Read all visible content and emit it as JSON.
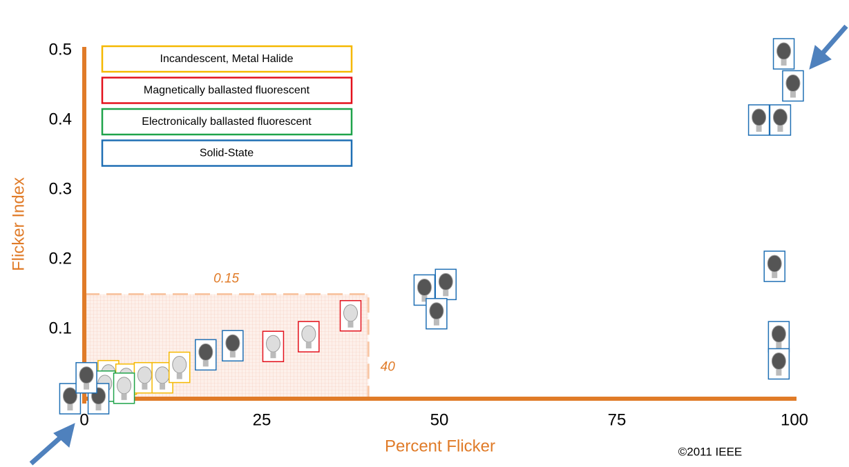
{
  "chart_data": {
    "type": "scatter",
    "x_label": "Percent Flicker",
    "y_label": "Flicker Index",
    "xlim": [
      0,
      100
    ],
    "ylim": [
      0,
      0.5
    ],
    "xticks": [
      0,
      25,
      50,
      75,
      100
    ],
    "yticks": [
      0.1,
      0.2,
      0.3,
      0.4,
      0.5
    ],
    "axis_color": "#e07b28",
    "threshold": {
      "x": 40,
      "y": 0.15
    },
    "copyright": "©2011 IEEE",
    "series": [
      {
        "name": "Incandescent, Metal Halide",
        "color": "#f5b800",
        "x": [
          3.4,
          5.9,
          8.5,
          11,
          13.4
        ],
        "y": [
          0.033,
          0.028,
          0.03,
          0.03,
          0.045
        ]
      },
      {
        "name": "Magnetically ballasted fluorescent",
        "color": "#e3101b",
        "x": [
          26.6,
          31.6,
          37.5
        ],
        "y": [
          0.075,
          0.089,
          0.119
        ]
      },
      {
        "name": "Electronically ballasted fluorescent",
        "color": "#1ea34a",
        "x": [
          2.9,
          5.6
        ],
        "y": [
          0.018,
          0.015
        ]
      },
      {
        "name": "Solid-State",
        "color": "#1f6fb4",
        "x": [
          -2,
          2,
          0.3,
          17.1,
          20.9,
          47.9,
          50.9,
          49.6,
          98.5,
          99.8,
          95,
          98,
          97.2,
          97.8,
          97.8
        ],
        "y": [
          0,
          0,
          0.03,
          0.063,
          0.076,
          0.156,
          0.164,
          0.122,
          0.495,
          0.449,
          0.4,
          0.4,
          0.19,
          0.089,
          0.05
        ]
      }
    ]
  }
}
